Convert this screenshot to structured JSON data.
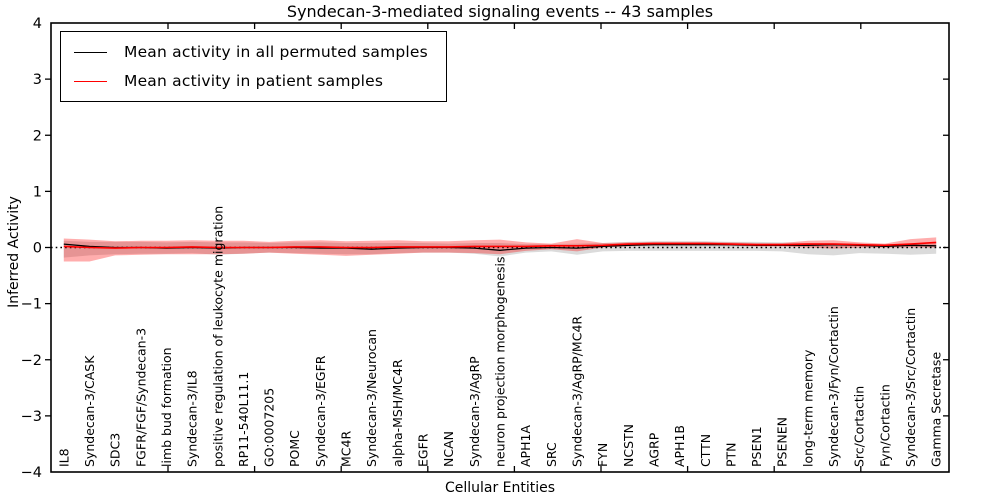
{
  "figure": {
    "title": "Syndecan-3-mediated signaling events -- 43 samples",
    "xlabel": "Cellular Entities",
    "ylabel": "Inferred Activity"
  },
  "legend": {
    "entries": [
      {
        "label": "Mean activity in all permuted samples",
        "color": "#000000"
      },
      {
        "label": "Mean activity in patient samples",
        "color": "#ff0000"
      }
    ]
  },
  "chart_data": {
    "type": "line",
    "title": "Syndecan-3-mediated signaling events -- 43 samples",
    "xlabel": "Cellular Entities",
    "ylabel": "Inferred Activity",
    "ylim": [
      -4,
      4
    ],
    "yticks": [
      4,
      3,
      2,
      1,
      0,
      -1,
      -2,
      -3,
      -4
    ],
    "grid": false,
    "legend_position": "upper left",
    "zero_line_style": "dotted",
    "background": "#ffffff",
    "axis_color": "#000000",
    "categories": [
      "IL8",
      "Syndecan-3/CASK",
      "SDC3",
      "FGFR/FGF/Syndecan-3",
      "limb bud formation",
      "Syndecan-3/IL8",
      "positive regulation of leukocyte migration",
      "RP11-540L11.1",
      "GO:0007205",
      "POMC",
      "Syndecan-3/EGFR",
      "MC4R",
      "Syndecan-3/Neurocan",
      "alpha-MSH/MC4R",
      "EGFR",
      "NCAN",
      "Syndecan-3/AgRP",
      "neuron projection morphogenesis",
      "APH1A",
      "SRC",
      "Syndecan-3/AgRP/MC4R",
      "FYN",
      "NCSTN",
      "AGRP",
      "APH1B",
      "CTTN",
      "PTN",
      "PSEN1",
      "PSENEN",
      "long-term memory",
      "Syndecan-3/Fyn/Cortactin",
      "Src/Cortactin",
      "Fyn/Cortactin",
      "Syndecan-3/Src/Cortactin",
      "Gamma Secretase"
    ],
    "series": [
      {
        "id": "permuted-mean",
        "name": "Mean activity in all permuted samples",
        "color": "#000000",
        "style": "solid",
        "values": [
          0.06,
          0.02,
          0.0,
          0.0,
          -0.01,
          0.0,
          -0.01,
          0.0,
          0.0,
          0.0,
          -0.01,
          -0.01,
          -0.03,
          -0.01,
          0.0,
          0.0,
          -0.01,
          -0.05,
          -0.01,
          0.0,
          -0.01,
          0.02,
          0.04,
          0.05,
          0.05,
          0.05,
          0.05,
          0.04,
          0.04,
          0.04,
          0.05,
          0.04,
          0.02,
          0.04,
          0.03
        ]
      },
      {
        "id": "patient-mean",
        "name": "Mean activity in patient samples",
        "color": "#ff0000",
        "style": "solid",
        "values": [
          0.02,
          0.0,
          -0.01,
          0.0,
          0.0,
          0.01,
          0.0,
          0.0,
          0.0,
          0.01,
          0.01,
          0.0,
          0.0,
          0.01,
          0.01,
          0.01,
          0.02,
          0.02,
          0.02,
          0.03,
          0.03,
          0.04,
          0.06,
          0.07,
          0.07,
          0.07,
          0.06,
          0.05,
          0.05,
          0.06,
          0.06,
          0.05,
          0.04,
          0.06,
          0.09
        ]
      }
    ],
    "bands": [
      {
        "id": "permuted-range",
        "color": "rgba(0,0,0,0.14)",
        "upper": [
          0.12,
          0.1,
          0.1,
          0.1,
          0.09,
          0.1,
          0.09,
          0.09,
          0.08,
          0.09,
          0.09,
          0.08,
          0.08,
          0.08,
          0.08,
          0.07,
          0.08,
          0.08,
          0.06,
          0.06,
          0.07,
          0.08,
          0.1,
          0.11,
          0.11,
          0.11,
          0.1,
          0.1,
          0.09,
          0.08,
          0.08,
          0.07,
          0.06,
          0.07,
          0.09
        ],
        "lower": [
          -0.18,
          -0.14,
          -0.12,
          -0.11,
          -0.11,
          -0.1,
          -0.13,
          -0.11,
          -0.09,
          -0.1,
          -0.11,
          -0.12,
          -0.12,
          -0.1,
          -0.09,
          -0.09,
          -0.11,
          -0.16,
          -0.09,
          -0.07,
          -0.13,
          -0.07,
          -0.06,
          -0.06,
          -0.06,
          -0.06,
          -0.06,
          -0.06,
          -0.07,
          -0.12,
          -0.14,
          -0.1,
          -0.11,
          -0.13,
          -0.11
        ]
      },
      {
        "id": "patient-range",
        "color": "rgba(255,0,0,0.32)",
        "upper": [
          0.16,
          0.14,
          0.11,
          0.12,
          0.12,
          0.13,
          0.12,
          0.12,
          0.1,
          0.12,
          0.13,
          0.11,
          0.12,
          0.13,
          0.11,
          0.11,
          0.13,
          0.14,
          0.09,
          0.07,
          0.15,
          0.08,
          0.09,
          0.1,
          0.1,
          0.1,
          0.09,
          0.08,
          0.08,
          0.12,
          0.13,
          0.09,
          0.07,
          0.15,
          0.18
        ],
        "lower": [
          -0.25,
          -0.25,
          -0.14,
          -0.13,
          -0.12,
          -0.12,
          -0.12,
          -0.11,
          -0.09,
          -0.11,
          -0.13,
          -0.15,
          -0.13,
          -0.11,
          -0.09,
          -0.09,
          -0.1,
          -0.12,
          -0.06,
          -0.03,
          -0.07,
          0.0,
          0.02,
          0.04,
          0.04,
          0.04,
          0.03,
          0.02,
          0.02,
          0.0,
          -0.02,
          0.0,
          0.0,
          0.0,
          0.0
        ]
      }
    ]
  }
}
